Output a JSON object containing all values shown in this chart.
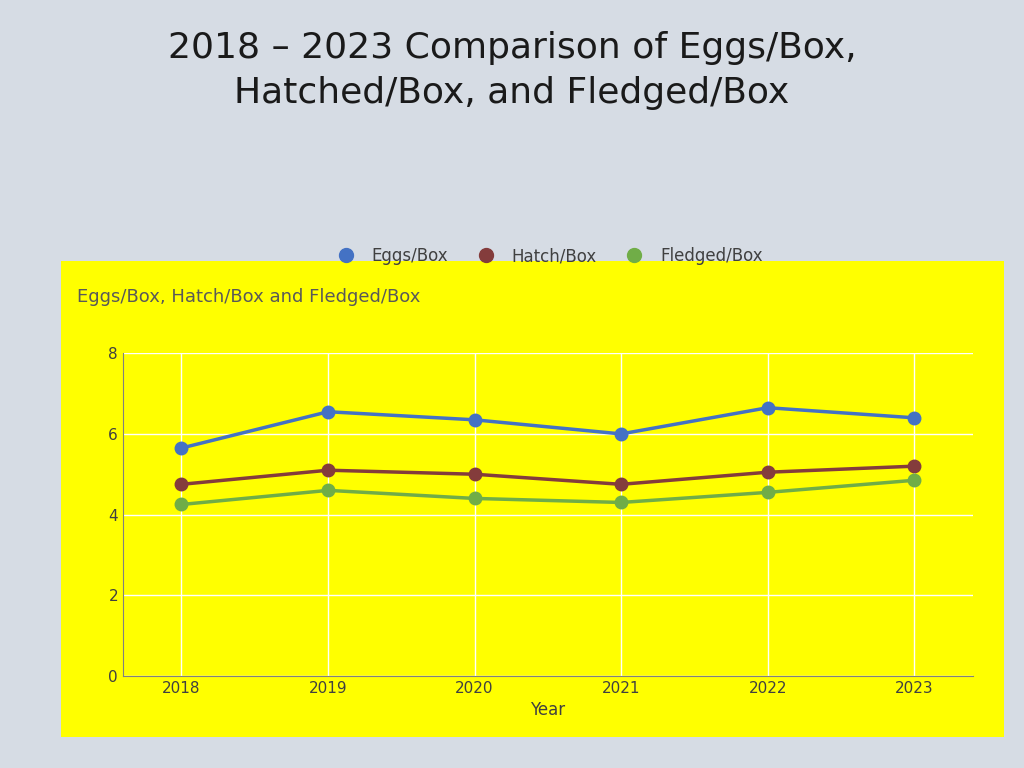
{
  "title": "2018 – 2023 Comparison of Eggs/Box,\nHatched/Box, and Fledged/Box",
  "chart_title": "Eggs/Box, Hatch/Box and Fledged/Box",
  "xlabel": "Year",
  "years": [
    2018,
    2019,
    2020,
    2021,
    2022,
    2023
  ],
  "eggs_per_box": [
    5.65,
    6.55,
    6.35,
    6.0,
    6.65,
    6.4
  ],
  "hatch_per_box": [
    4.75,
    5.1,
    5.0,
    4.75,
    5.05,
    5.2
  ],
  "fledged_per_box": [
    4.25,
    4.6,
    4.4,
    4.3,
    4.55,
    4.85
  ],
  "eggs_color": "#4472C4",
  "hatch_color": "#843C3C",
  "fledged_color": "#70AD47",
  "fledged_color_legend": "#90EE90",
  "bg_color": "#FFFF00",
  "outer_bg": "#D6DCE4",
  "chart_title_color": "#595959",
  "axis_label_color": "#404040",
  "tick_color": "#404040",
  "ylim": [
    0,
    8
  ],
  "yticks": [
    0,
    2,
    4,
    6,
    8
  ],
  "line_width": 2.5,
  "marker_size": 9,
  "title_fontsize": 26,
  "chart_title_fontsize": 13,
  "legend_fontsize": 12,
  "axis_label_fontsize": 12,
  "tick_fontsize": 11
}
